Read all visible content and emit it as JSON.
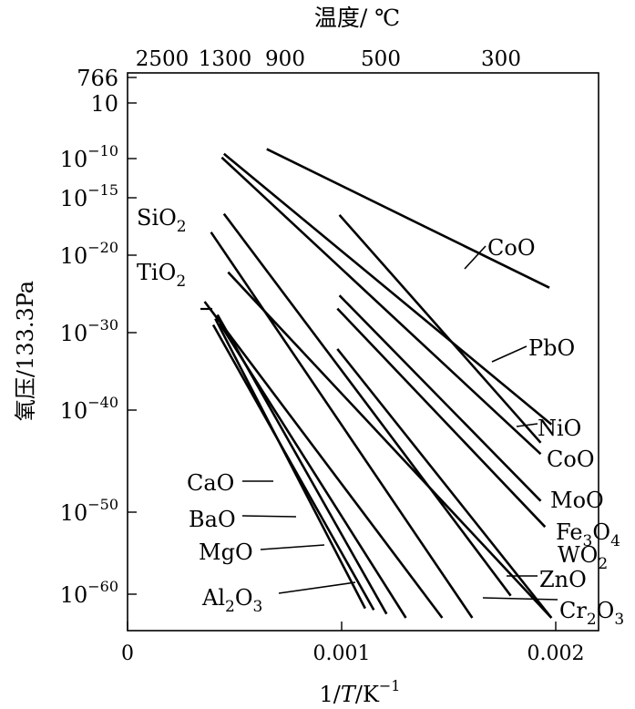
{
  "chart_data": {
    "type": "line",
    "title": "",
    "top_axis_label": "温度/ ℃",
    "top_ticks": [
      {
        "label": "2500"
      },
      {
        "label": "1300"
      },
      {
        "label": "900"
      },
      {
        "label": "500"
      },
      {
        "label": "300"
      }
    ],
    "ylabel": "氧压/133.3Pa",
    "y_ticks": [
      {
        "exp": "766",
        "value": 766
      },
      {
        "exp": "10",
        "value": 10
      },
      {
        "exp": "10",
        "sup": "−10",
        "value": -10
      },
      {
        "exp": "10",
        "sup": "−15",
        "value": -15
      },
      {
        "exp": "10",
        "sup": "−20",
        "value": -20
      },
      {
        "exp": "10",
        "sup": "−30",
        "value": -30
      },
      {
        "exp": "10",
        "sup": "−40",
        "value": -40
      },
      {
        "exp": "10",
        "sup": "−50",
        "value": -50
      },
      {
        "exp": "10",
        "sup": "−60",
        "value": -60
      }
    ],
    "xlabel_parts": {
      "pre": "1/",
      "ital": "T",
      "post": "/K",
      "sup": "−1"
    },
    "x_ticks": [
      {
        "label": "0",
        "value": 0
      },
      {
        "label": "0.001",
        "value": 0.001
      },
      {
        "label": "0.002",
        "value": 0.002
      }
    ],
    "xlim": [
      0,
      0.0022
    ],
    "log_scale_y": true,
    "series": [
      {
        "name": "CoO",
        "x": [
          0.00065,
          0.00197
        ],
        "y": [
          -6.6,
          -24.2
        ]
      },
      {
        "name": "PbO",
        "x": [
          0.00045,
          0.00198
        ],
        "y": [
          -8.3,
          -41.4
        ]
      },
      {
        "name": "NiO",
        "x": [
          0.00044,
          0.00193
        ],
        "y": [
          -9.6,
          -44.3
        ]
      },
      {
        "name": "CoO",
        "x": [
          0.00099,
          0.00193
        ],
        "y": [
          -16.5,
          -43.2
        ]
      },
      {
        "name": "MoO",
        "x": [
          0.00099,
          0.00193
        ],
        "y": [
          -25.2,
          -48.9
        ]
      },
      {
        "name": "Fe3O4",
        "x": [
          0.00098,
          0.00195
        ],
        "y": [
          -26.9,
          -51.8
        ]
      },
      {
        "name": "WO2",
        "x": [
          0.00045,
          0.00179
        ],
        "y": [
          -16.4,
          -60.2
        ]
      },
      {
        "name": "ZnO",
        "x": [
          0.00047,
          0.00198
        ],
        "y": [
          -22.2,
          -63.0
        ]
      },
      {
        "name": "Cr2O3",
        "x": [
          0.00098,
          0.00198
        ],
        "y": [
          -32.1,
          -63.0
        ]
      },
      {
        "name": "SiO2",
        "x": [
          0.00039,
          0.00161
        ],
        "y": [
          -18.0,
          -63.0
        ]
      },
      {
        "name": "TiO2",
        "x": [
          0.00036,
          0.00147
        ],
        "y": [
          -26.0,
          -63.0
        ]
      },
      {
        "name": "CaO",
        "x": [
          0.00042,
          0.00121
        ],
        "y": [
          -27.7,
          -62.5
        ]
      },
      {
        "name": "BaO",
        "x": [
          0.00043,
          0.0013
        ],
        "y": [
          -28.8,
          -63.0
        ]
      },
      {
        "name": "MgO",
        "x": [
          0.00041,
          0.00111
        ],
        "y": [
          -28.2,
          -61.8
        ]
      },
      {
        "name": "Al2O3",
        "x": [
          0.0004,
          0.00115
        ],
        "y": [
          -29.0,
          -62.0
        ]
      }
    ],
    "annotations": [
      {
        "label": "SiO",
        "sub": "2"
      },
      {
        "label": "TiO",
        "sub": "2"
      },
      {
        "label": "CoO"
      },
      {
        "label": "PbO"
      },
      {
        "label": "NiO"
      },
      {
        "label": "CoO"
      },
      {
        "label": "MoO"
      },
      {
        "label": "Fe",
        "sub": "3",
        "post": "O",
        "sub2": "4"
      },
      {
        "label": "WO",
        "sub": "2"
      },
      {
        "label": "ZnO"
      },
      {
        "label": "Cr",
        "sub": "2",
        "post": "O",
        "sub2": "3"
      },
      {
        "label": "CaO"
      },
      {
        "label": "BaO"
      },
      {
        "label": "MgO"
      },
      {
        "label": "Al",
        "sub": "2",
        "post": "O",
        "sub2": "3"
      }
    ],
    "grid": false,
    "legend": "none"
  }
}
